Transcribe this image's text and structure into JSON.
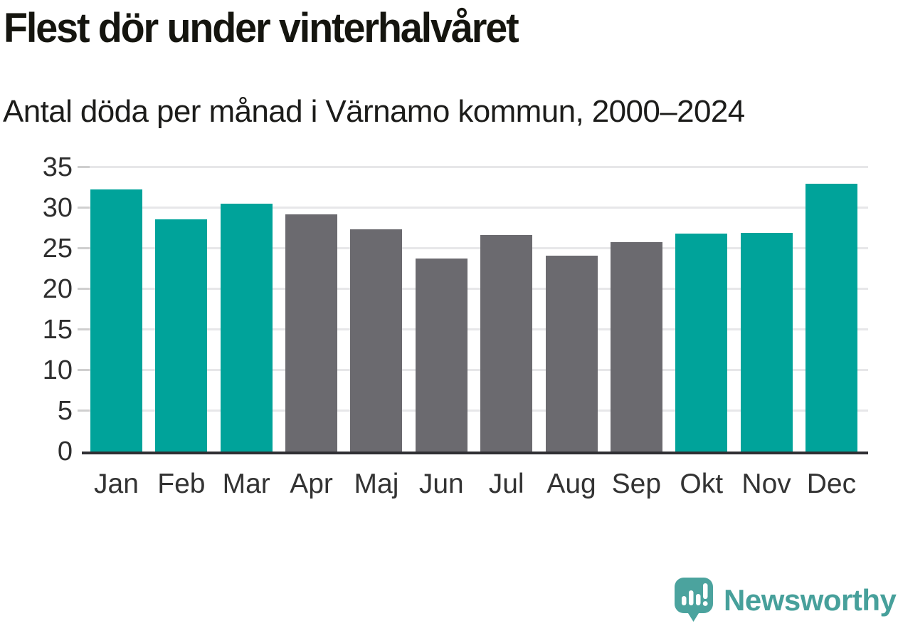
{
  "title": "Flest dör under vinterhalvåret",
  "subtitle": "Antal döda per månad i Värnamo kommun, 2000–2024",
  "logo": {
    "text": "Newsworthy",
    "icon": "speech-bubble-bar-chart-exclamation"
  },
  "colors": {
    "highlight_bar": "#00a39a",
    "neutral_bar": "#6b6a6f",
    "axis_line": "#2f2f33",
    "gridline": "#e7e7e9",
    "tick": "#cfcfcf",
    "y_label": "#2e2e2e",
    "x_label": "#333333",
    "title_text": "#15150f",
    "logo_teal": "#4ba39e",
    "logo_text_teal": "#47a09b"
  },
  "chart_data": {
    "type": "bar",
    "title": "Flest dör under vinterhalvåret",
    "subtitle": "Antal döda per månad i Värnamo kommun, 2000–2024",
    "categories": [
      "Jan",
      "Feb",
      "Mar",
      "Apr",
      "Maj",
      "Jun",
      "Jul",
      "Aug",
      "Sep",
      "Okt",
      "Nov",
      "Dec"
    ],
    "values": [
      32.2,
      28.6,
      30.5,
      29.2,
      27.3,
      23.7,
      26.6,
      24.1,
      25.8,
      26.8,
      26.9,
      32.9
    ],
    "highlighted": [
      true,
      true,
      true,
      false,
      false,
      false,
      false,
      false,
      false,
      true,
      true,
      true
    ],
    "highlight_meaning": "winter half-year months (Okt–Mar) shown in teal, Apr–Sep in gray",
    "xlabel": "",
    "ylabel": "",
    "ylim": [
      0,
      35
    ],
    "yticks": [
      0,
      5,
      10,
      15,
      20,
      25,
      30,
      35
    ],
    "grid": true,
    "legend": "none"
  }
}
